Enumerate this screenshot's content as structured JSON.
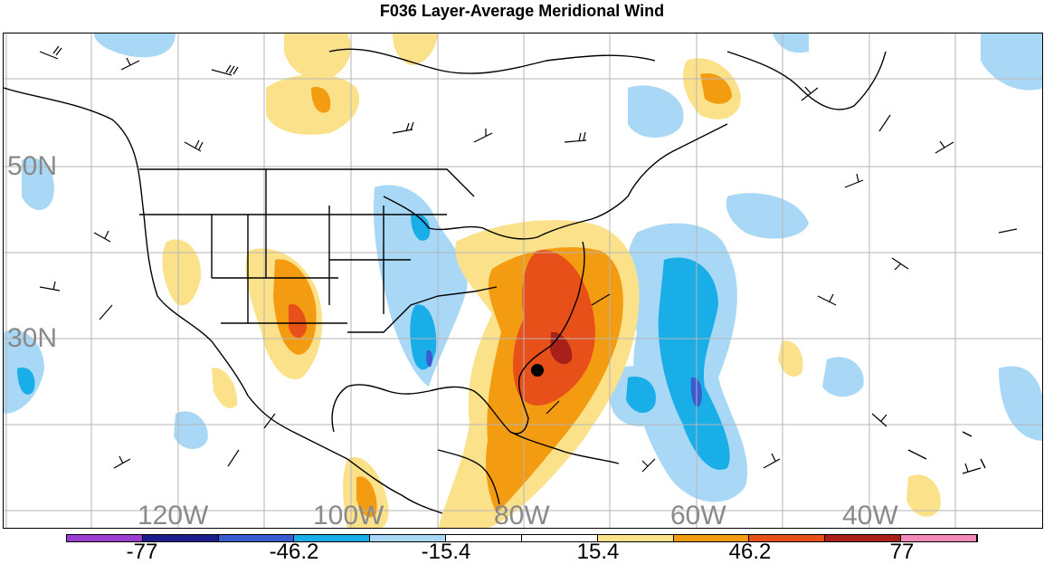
{
  "title": "F036 Layer-Average Meridional Wind",
  "lat_labels": [
    "50N",
    "30N"
  ],
  "lon_labels": [
    "120W",
    "100W",
    "80W",
    "60W",
    "40W"
  ],
  "colorbar": {
    "colors": [
      "#9b3fd0",
      "#1c1c8c",
      "#3b5bd0",
      "#1aaee8",
      "#a8d8f5",
      "#ffffff",
      "#ffffff",
      "#fbe28a",
      "#f39c12",
      "#e8501a",
      "#a8201a",
      "#f08ab8"
    ],
    "tick_labels": [
      "-77",
      "-46.2",
      "-15.4",
      "15.4",
      "46.2",
      "77"
    ]
  },
  "shading_colors": {
    "light_blue": "#a8d8f5",
    "blue": "#1aaee8",
    "dark_blue": "#3b5bd0",
    "light_yellow": "#fbe28a",
    "orange": "#f39c12",
    "red_orange": "#e8501a",
    "dark_red": "#a8201a"
  },
  "storm_marker": "filled-circle"
}
